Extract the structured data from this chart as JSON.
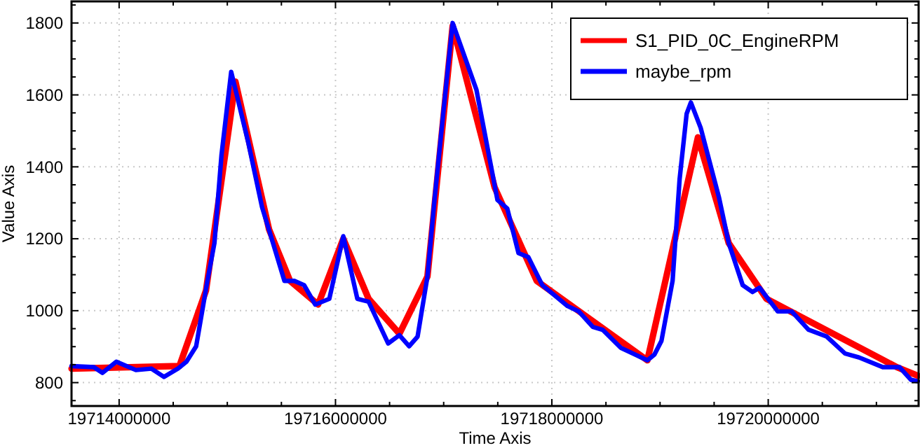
{
  "chart_data": {
    "type": "line",
    "xlabel": "Time Axis",
    "ylabel": "Value Axis",
    "xlim": [
      19713560000,
      19721390000
    ],
    "ylim": [
      735,
      1860
    ],
    "xticks": [
      19714000000,
      {
        "value": 19714500000,
        "label": null
      },
      {
        "value": 19715000000,
        "label": null
      },
      {
        "value": 19715500000,
        "label": null
      },
      19716000000,
      {
        "value": 19716500000,
        "label": null
      },
      {
        "value": 19717000000,
        "label": null
      },
      {
        "value": 19717500000,
        "label": null
      },
      19718000000,
      {
        "value": 19718500000,
        "label": null
      },
      {
        "value": 19719000000,
        "label": null
      },
      {
        "value": 19719500000,
        "label": null
      },
      19720000000,
      {
        "value": 19720500000,
        "label": null
      },
      {
        "value": 19721000000,
        "label": null
      }
    ],
    "yticks": [
      {
        "value": 750,
        "label": null
      },
      800,
      {
        "value": 850,
        "label": null
      },
      {
        "value": 900,
        "label": null
      },
      {
        "value": 950,
        "label": null
      },
      1000,
      {
        "value": 1050,
        "label": null
      },
      {
        "value": 1100,
        "label": null
      },
      {
        "value": 1150,
        "label": null
      },
      1200,
      {
        "value": 1250,
        "label": null
      },
      {
        "value": 1300,
        "label": null
      },
      {
        "value": 1350,
        "label": null
      },
      1400,
      {
        "value": 1450,
        "label": null
      },
      {
        "value": 1500,
        "label": null
      },
      {
        "value": 1550,
        "label": null
      },
      1600,
      {
        "value": 1650,
        "label": null
      },
      {
        "value": 1700,
        "label": null
      },
      {
        "value": 1750,
        "label": null
      },
      1800,
      {
        "value": 1850,
        "label": null
      }
    ],
    "grid": true,
    "legend": "top right",
    "line_style": "solid",
    "marker": "none",
    "series": [
      {
        "name": "S1_PID_0C_EngineRPM",
        "color": "#ff0000",
        "x": [
          19713560000,
          19714557000,
          19714803000,
          19715075000,
          19715386000,
          19715580000,
          19715839000,
          19716072000,
          19716306000,
          19716591000,
          19716850000,
          19717083000,
          19717471000,
          19717860000,
          19718883000,
          19719350000,
          19719635000,
          19719984000,
          19721189000,
          19721383000
        ],
        "values": [
          839,
          846,
          1056,
          1637,
          1226,
          1083,
          1017,
          1200,
          1033,
          936,
          1095,
          1792,
          1343,
          1083,
          862,
          1482,
          1188,
          1033,
          843,
          819
        ]
      },
      {
        "name": "maybe_rpm",
        "color": "#0000ff",
        "x": [
          19713560000,
          19713767000,
          19713845000,
          19713974000,
          19714155000,
          19714298000,
          19714414000,
          19714544000,
          19714622000,
          19714712000,
          19714816000,
          19714881000,
          19714946000,
          19715036000,
          19715192000,
          19715321000,
          19715399000,
          19715528000,
          19715619000,
          19715710000,
          19715813000,
          19715943000,
          19716072000,
          19716202000,
          19716306000,
          19716487000,
          19716591000,
          19716681000,
          19716759000,
          19716850000,
          19716914000,
          19717005000,
          19717083000,
          19717303000,
          19717497000,
          19717588000,
          19717692000,
          19717782000,
          19717912000,
          19718145000,
          19718249000,
          19718378000,
          19718469000,
          19718637000,
          19718883000,
          19718948000,
          19719013000,
          19719116000,
          19719181000,
          19719246000,
          19719285000,
          19719375000,
          19719544000,
          19719635000,
          19719764000,
          19719855000,
          19719920000,
          19720088000,
          19720217000,
          19720373000,
          19720541000,
          19720710000,
          19720839000,
          19721059000,
          19721214000,
          19721318000,
          19721383000
        ],
        "values": [
          846,
          843,
          827,
          858,
          835,
          839,
          816,
          839,
          858,
          901,
          1083,
          1188,
          1432,
          1664,
          1470,
          1288,
          1211,
          1083,
          1083,
          1071,
          1017,
          1033,
          1207,
          1033,
          1025,
          909,
          932,
          901,
          928,
          1095,
          1304,
          1575,
          1800,
          1614,
          1308,
          1284,
          1160,
          1149,
          1071,
          1013,
          998,
          955,
          947,
          897,
          862,
          878,
          916,
          1083,
          1366,
          1548,
          1579,
          1509,
          1316,
          1188,
          1071,
          1052,
          1064,
          998,
          998,
          947,
          928,
          881,
          870,
          843,
          843,
          808,
          804
        ]
      }
    ]
  }
}
